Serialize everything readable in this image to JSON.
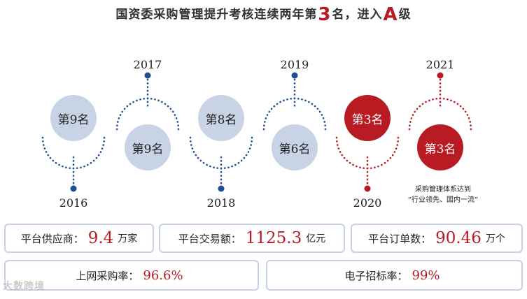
{
  "title": {
    "prefix": "国资委采购管理提升考核连续两年第",
    "rank_number": "3",
    "middle": "名，进入",
    "grade": "A",
    "suffix": "级"
  },
  "timeline": {
    "years": [
      "2016",
      "2017",
      "2018",
      "2019",
      "2020",
      "2021"
    ],
    "ranks": [
      "第9名",
      "第9名",
      "第8名",
      "第6名",
      "第3名",
      "第3名"
    ],
    "note_line1": "采购管理体系达到",
    "note_line2": "“行业领先、国内一流”",
    "colors": {
      "blue": "#1f4f92",
      "red": "#b81c22",
      "circle_blue": "#c9d3e6"
    }
  },
  "stats": {
    "suppliers": {
      "label": "平台供应商：",
      "value": "9.4",
      "unit": "万家"
    },
    "transaction": {
      "label": "平台交易额：",
      "value": "1125.3",
      "unit": "亿元"
    },
    "orders": {
      "label": "平台订单数：",
      "value": "90.46",
      "unit": "万个"
    },
    "online_rate": {
      "label": "上网采购率：",
      "value": "96.6%"
    },
    "ebid_rate": {
      "label": "电子招标率：",
      "value": "99%"
    }
  },
  "watermark": "大数跨境"
}
